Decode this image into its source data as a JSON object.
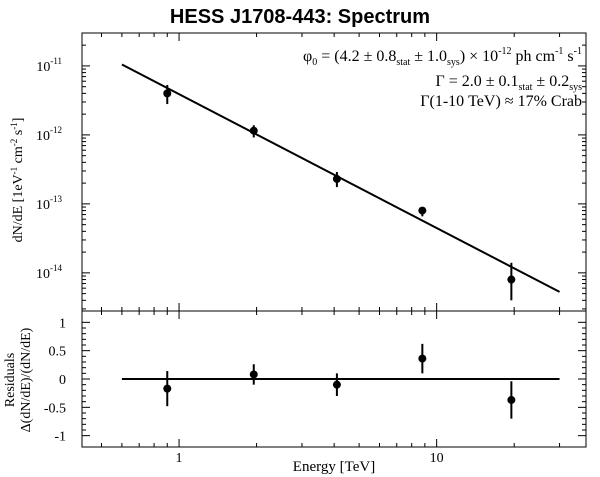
{
  "title": "HESS J1708-443: Spectrum",
  "annotations": {
    "phi_line": "φ0 = (4.2 ± 0.8stat ± 1.0sys) × 10-12 ph cm-1 s-1",
    "phi": {
      "symbol": "φ",
      "sub": "0",
      "body": " = (4.2 ± 0.8",
      "stat": "stat",
      "mid": " ± 1.0",
      "sys": "sys",
      "end": ") × 10",
      "exp": "-12",
      "unit": " ph cm",
      "unit_exp1": "-1",
      "unit2": " s",
      "unit_exp2": "-1"
    },
    "gamma_line": "Γ = 2.0 ± 0.1stat ± 0.2sys",
    "gamma": {
      "body": "Γ = 2.0 ± 0.1",
      "stat": "stat",
      "mid": " ± 0.2",
      "sys": "sys"
    },
    "crab": "Γ(1-10 TeV) ≈ 17% Crab"
  },
  "chart_data": [
    {
      "type": "scatter",
      "panel": "spectrum",
      "ylabel": "dN/dE [1eV-1 cm-2 s-1]",
      "ylabel_parts": {
        "a": "dN/dE [1eV",
        "e1": "-1",
        "b": " cm",
        "e2": "-2",
        "c": " s",
        "e3": "-1",
        "d": "]"
      },
      "x_scale": "log",
      "y_scale": "log",
      "xlim": [
        0.42,
        38
      ],
      "ylim": [
        2.8e-15,
        3e-11
      ],
      "y_ticks": [
        {
          "value": 1e-11,
          "base": "10",
          "exp": "-11"
        },
        {
          "value": 1e-12,
          "base": "10",
          "exp": "-12"
        },
        {
          "value": 1e-13,
          "base": "10",
          "exp": "-13"
        },
        {
          "value": 1e-14,
          "base": "10",
          "exp": "-14"
        }
      ],
      "points": [
        {
          "x": 0.9,
          "y": 4e-12,
          "y_lo": 2.8e-12,
          "y_hi": 5.3e-12
        },
        {
          "x": 1.95,
          "y": 1.15e-12,
          "y_lo": 9.2e-13,
          "y_hi": 1.38e-12
        },
        {
          "x": 4.1,
          "y": 2.3e-13,
          "y_lo": 1.75e-13,
          "y_hi": 2.9e-13
        },
        {
          "x": 8.8,
          "y": 8e-14,
          "y_lo": 6.6e-14,
          "y_hi": 9e-14
        },
        {
          "x": 19.5,
          "y": 8e-15,
          "y_lo": 4e-15,
          "y_hi": 1.4e-14
        }
      ],
      "fit_line": {
        "x": [
          0.6,
          30
        ],
        "y": [
          1.05e-11,
          5.3e-15
        ]
      }
    },
    {
      "type": "scatter",
      "panel": "residuals",
      "ylabel": "Residuals",
      "ylabel2": "Δ(dN/dE)/(dN/dE)",
      "xlabel": "Energy [TeV]",
      "x_scale": "log",
      "xlim": [
        0.42,
        38
      ],
      "ylim": [
        -1.2,
        1.2
      ],
      "y_ticks": [
        "-1",
        "-0.5",
        "0",
        "0.5",
        "1"
      ],
      "x_ticks": [
        "1",
        "10"
      ],
      "points": [
        {
          "x": 0.9,
          "y": -0.17,
          "err": 0.31
        },
        {
          "x": 1.95,
          "y": 0.08,
          "err": 0.18
        },
        {
          "x": 4.1,
          "y": -0.1,
          "err": 0.2
        },
        {
          "x": 8.8,
          "y": 0.36,
          "err": 0.26
        },
        {
          "x": 19.5,
          "y": -0.37,
          "err": 0.33
        }
      ],
      "zero_line": {
        "x": [
          0.6,
          30
        ],
        "y": [
          0,
          0
        ]
      }
    }
  ]
}
